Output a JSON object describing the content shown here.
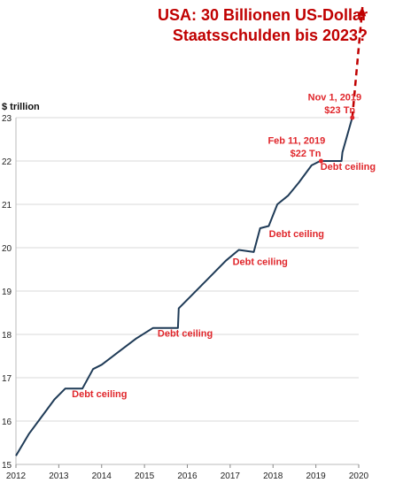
{
  "headline": {
    "line1": "USA: 30 Billionen US-Dollar",
    "line2": "Staatsschulden bis 2023?"
  },
  "chart_data": {
    "type": "line",
    "ylabel": "$ trillion",
    "ylim": [
      15,
      23
    ],
    "xlim": [
      2012,
      2020
    ],
    "grid": true,
    "x_ticks": [
      "2012",
      "2013",
      "2014",
      "2015",
      "2016",
      "2017",
      "2018",
      "2019",
      "2020"
    ],
    "y_ticks": [
      "15",
      "16",
      "17",
      "18",
      "19",
      "20",
      "21",
      "22",
      "23"
    ],
    "line_color": "#1f3b57",
    "series": [
      {
        "x": [
          2012.0,
          2012.3,
          2012.6,
          2012.9,
          2013.15,
          2013.55,
          2013.8,
          2014.0,
          2014.4,
          2014.8,
          2015.2,
          2015.78,
          2015.8,
          2016.1,
          2016.5,
          2016.9,
          2017.2,
          2017.55,
          2017.7,
          2017.9,
          2018.1,
          2018.35,
          2018.6,
          2018.9,
          2019.1,
          2019.2,
          2019.6,
          2019.62,
          2019.85
        ],
        "y": [
          15.2,
          15.7,
          16.1,
          16.5,
          16.75,
          16.75,
          17.2,
          17.3,
          17.6,
          17.9,
          18.15,
          18.15,
          18.6,
          18.9,
          19.3,
          19.7,
          19.95,
          19.9,
          20.45,
          20.5,
          21.0,
          21.2,
          21.5,
          21.9,
          22.0,
          22.0,
          22.0,
          22.2,
          23.0
        ]
      }
    ],
    "projection": {
      "x": [
        2019.85,
        2020.5
      ],
      "y": [
        23.0,
        30.0
      ],
      "color": "#c00000"
    },
    "annotations": [
      {
        "text": "Debt ceiling",
        "x": 2013.95,
        "y": 16.55
      },
      {
        "text": "Debt ceiling",
        "x": 2015.95,
        "y": 17.95
      },
      {
        "text": "Debt ceiling",
        "x": 2017.7,
        "y": 19.6
      },
      {
        "text": "Debt ceiling",
        "x": 2018.55,
        "y": 20.25
      },
      {
        "text": "Debt ceiling",
        "x": 2019.75,
        "y": 21.8
      },
      {
        "text": "Feb 11, 2019",
        "x": 2018.55,
        "y": 22.4
      },
      {
        "text": "$22 Tn",
        "x": 2018.76,
        "y": 22.1
      },
      {
        "text": "Nov 1, 2019",
        "x": 2019.44,
        "y": 23.4
      },
      {
        "text": "$23 Tn",
        "x": 2019.56,
        "y": 23.1
      }
    ],
    "points_marked": [
      {
        "x": 2019.12,
        "y": 22.0
      },
      {
        "x": 2019.85,
        "y": 23.0
      }
    ]
  }
}
